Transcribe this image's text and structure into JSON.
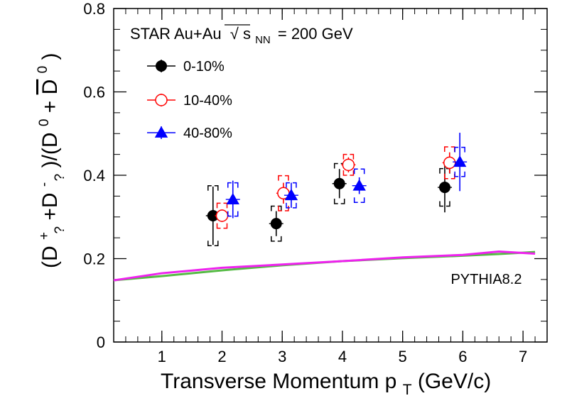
{
  "chart_data": {
    "type": "scatter",
    "header": {
      "prefix": "STAR Au+Au",
      "sqrt_symbol": "√",
      "s_letter": "s",
      "s_subscript": "NN",
      "energy": "= 200 GeV"
    },
    "xlabel": {
      "main": "Transverse Momentum p",
      "subscript": "T",
      "unit": " (GeV/c)"
    },
    "ylabel": {
      "p1": "(D",
      "sup1": "+",
      "sub1": "?",
      "p2": "+D",
      "sup2": "-",
      "sub2": "?",
      "p3": ")/(D",
      "sup3": "0",
      "p4": "+",
      "bar_d": "D",
      "sup4": "0",
      "p5": ")"
    },
    "xlim": [
      0.2,
      7.4
    ],
    "ylim": [
      0,
      0.8
    ],
    "x_ticks": [
      1,
      2,
      3,
      4,
      5,
      6,
      7
    ],
    "y_ticks": [
      0,
      0.2,
      0.4,
      0.6,
      0.8
    ],
    "y_tick_labels": [
      "0",
      "0.2",
      "0.4",
      "0.6",
      "0.8"
    ],
    "grid": false,
    "legend_position": "top-left",
    "series": [
      {
        "name": "0-10%",
        "color": "#000000",
        "marker": "filled-circle",
        "points": [
          {
            "x": 1.85,
            "y": 0.303,
            "stat": 0.07,
            "sys": 0.072
          },
          {
            "x": 2.9,
            "y": 0.284,
            "stat": 0.03,
            "sys": 0.042
          },
          {
            "x": 3.95,
            "y": 0.38,
            "stat": 0.035,
            "sys": 0.048
          },
          {
            "x": 5.7,
            "y": 0.371,
            "stat": 0.06,
            "sys": 0.045
          }
        ]
      },
      {
        "name": "10-40%",
        "color": "#ff0000",
        "marker": "open-circle",
        "points": [
          {
            "x": 2.0,
            "y": 0.303,
            "stat": 0.015,
            "sys": 0.03
          },
          {
            "x": 3.02,
            "y": 0.357,
            "stat": 0.025,
            "sys": 0.042
          },
          {
            "x": 4.1,
            "y": 0.425,
            "stat": 0.018,
            "sys": 0.025
          },
          {
            "x": 5.78,
            "y": 0.43,
            "stat": 0.025,
            "sys": 0.038
          }
        ]
      },
      {
        "name": "40-80%",
        "color": "#0000ff",
        "marker": "filled-triangle",
        "points": [
          {
            "x": 2.18,
            "y": 0.342,
            "stat": 0.045,
            "sys": 0.04
          },
          {
            "x": 3.15,
            "y": 0.352,
            "stat": 0.03,
            "sys": 0.03
          },
          {
            "x": 4.28,
            "y": 0.375,
            "stat": 0.02,
            "sys": 0.04
          },
          {
            "x": 5.95,
            "y": 0.432,
            "stat": 0.07,
            "sys": 0.035
          }
        ]
      }
    ],
    "curves": [
      {
        "name": "PYTHIA8.2",
        "label": "PYTHIA8.2",
        "label_x": 5.8,
        "label_y": 0.14,
        "colors": [
          "#55bb44",
          "#ee22ee"
        ],
        "x": [
          0.2,
          1.0,
          2.0,
          3.0,
          4.0,
          5.0,
          6.0,
          6.6,
          7.2
        ],
        "y_green": [
          0.148,
          0.158,
          0.172,
          0.184,
          0.194,
          0.201,
          0.207,
          0.211,
          0.216
        ],
        "y_magenta": [
          0.148,
          0.165,
          0.178,
          0.186,
          0.194,
          0.203,
          0.209,
          0.217,
          0.212
        ]
      }
    ]
  }
}
